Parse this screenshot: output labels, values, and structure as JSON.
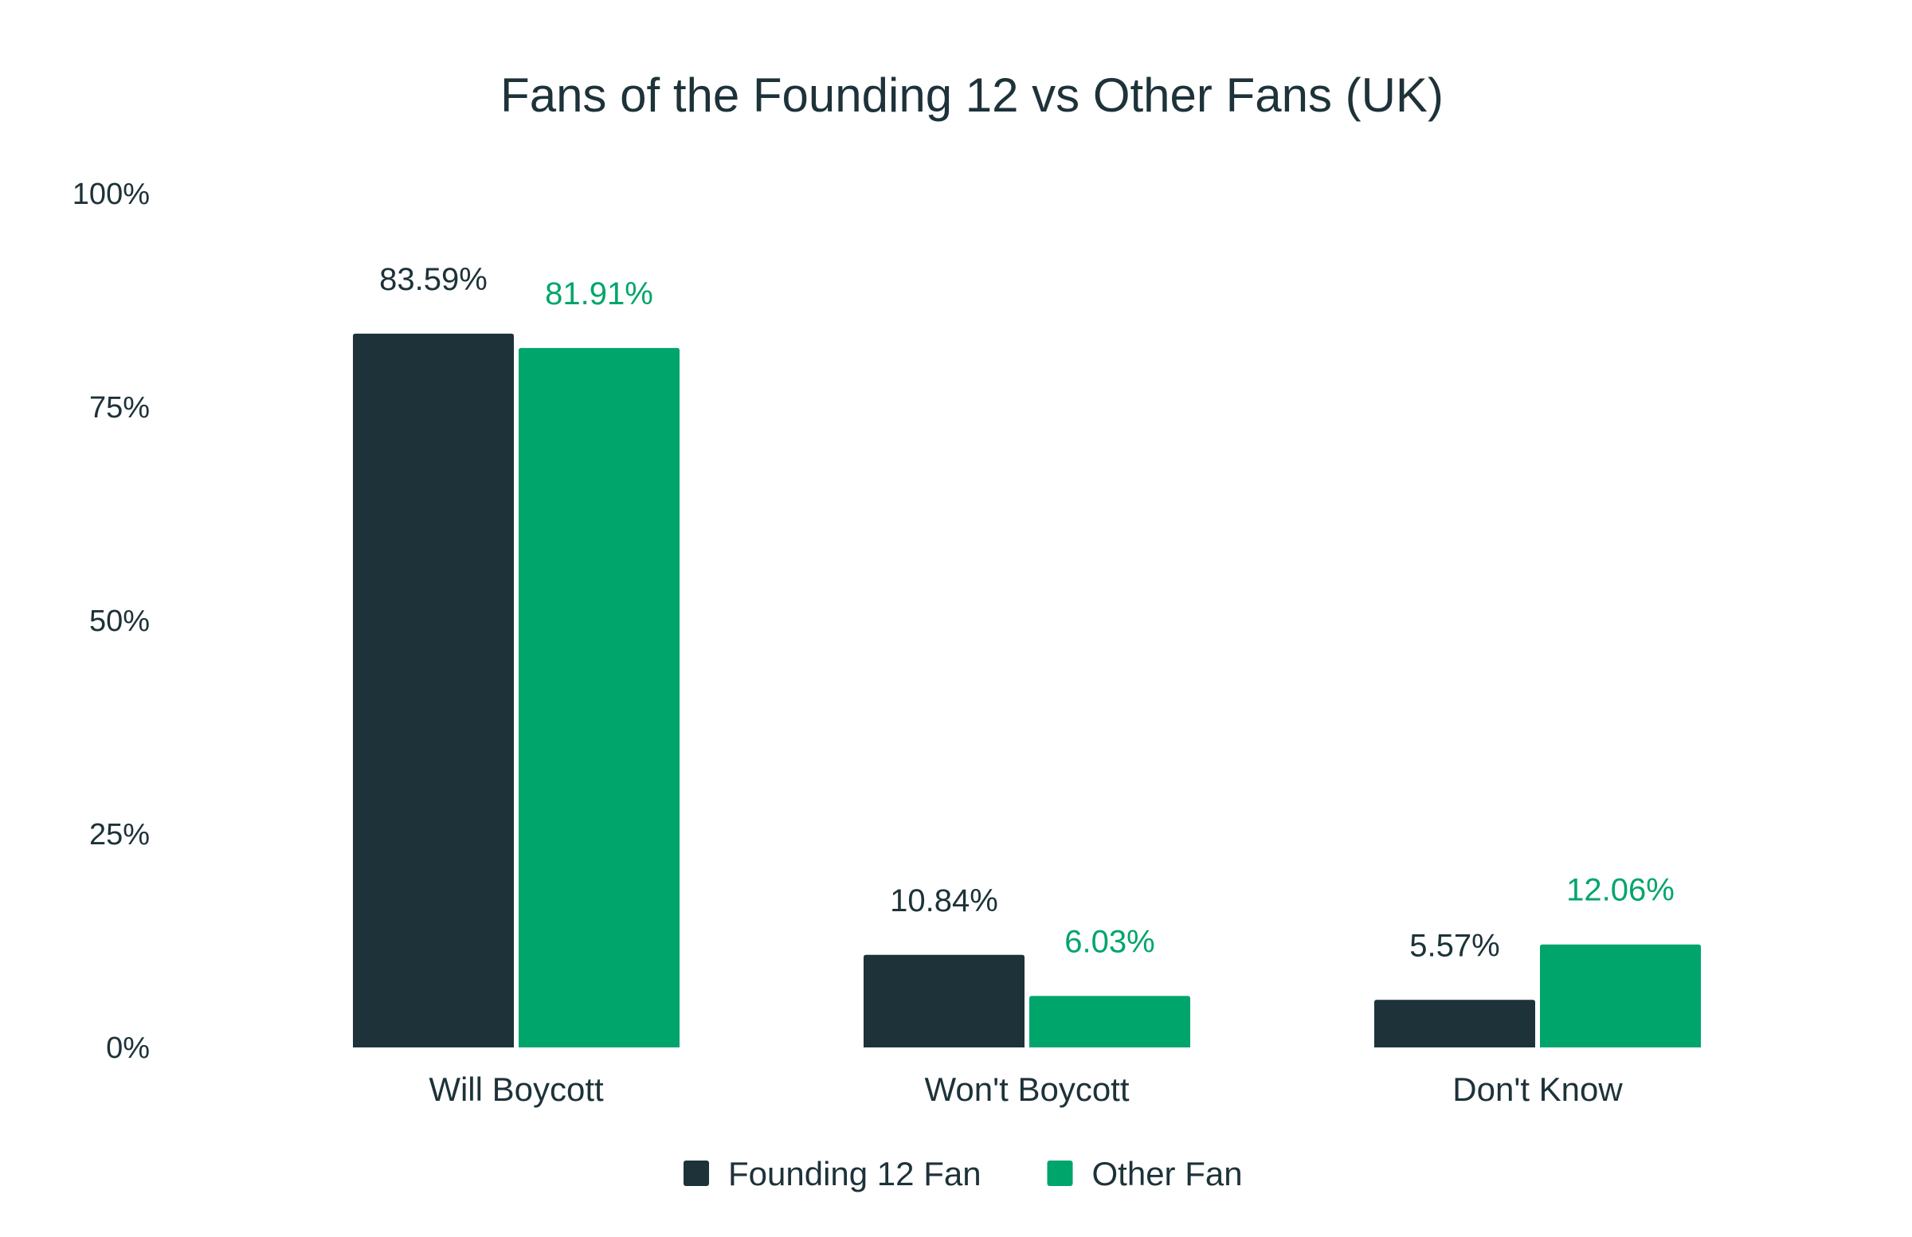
{
  "chart_data": {
    "type": "bar",
    "title": "Fans of the Founding 12 vs Other Fans (UK)",
    "categories": [
      "Will Boycott",
      "Won't Boycott",
      "Don't Know"
    ],
    "series": [
      {
        "name": "Founding 12 Fan",
        "color": "#1d3239",
        "values": [
          83.59,
          10.84,
          5.57
        ],
        "labels": [
          "83.59%",
          "10.84%",
          "5.57%"
        ]
      },
      {
        "name": "Other Fan",
        "color": "#00a56b",
        "values": [
          81.91,
          6.03,
          12.06
        ],
        "labels": [
          "81.91%",
          "6.03%",
          "12.06%"
        ]
      }
    ],
    "ylim": [
      0,
      100
    ],
    "yticks": [
      0,
      25,
      50,
      75,
      100
    ],
    "ytick_labels": [
      "0%",
      "25%",
      "50%",
      "75%",
      "100%"
    ],
    "grid": false,
    "legend_position": "bottom-center"
  }
}
